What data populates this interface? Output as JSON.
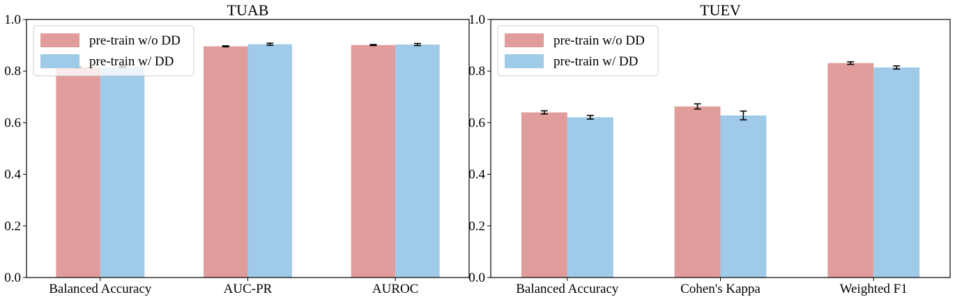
{
  "chart_data": [
    {
      "type": "bar",
      "title": "TUAB",
      "categories": [
        "Balanced Accuracy",
        "AUC-PR",
        "AUROC"
      ],
      "series": [
        {
          "name": "pre-train w/o DD",
          "color": "#e09d9b",
          "values": [
            0.815,
            0.896,
            0.901
          ],
          "errors": [
            0.003,
            0.002,
            0.002
          ]
        },
        {
          "name": "pre-train w/ DD",
          "color": "#9fcae8",
          "values": [
            0.816,
            0.904,
            0.903
          ],
          "errors": [
            0.002,
            0.004,
            0.004
          ]
        }
      ],
      "yticks": [
        "0.0",
        "0.2",
        "0.4",
        "0.6",
        "0.8",
        "1.0"
      ],
      "ylim": [
        0,
        1.0
      ],
      "xlabel": "",
      "ylabel": "",
      "legend": "top-left"
    },
    {
      "type": "bar",
      "title": "TUEV",
      "categories": [
        "Balanced Accuracy",
        "Cohen's Kappa",
        "Weighted F1"
      ],
      "series": [
        {
          "name": "pre-train w/o DD",
          "color": "#e09d9b",
          "values": [
            0.64,
            0.663,
            0.831
          ],
          "errors": [
            0.006,
            0.01,
            0.005
          ]
        },
        {
          "name": "pre-train w/ DD",
          "color": "#9fcae8",
          "values": [
            0.621,
            0.628,
            0.814
          ],
          "errors": [
            0.007,
            0.017,
            0.006
          ]
        }
      ],
      "yticks": [
        "0.0",
        "0.2",
        "0.4",
        "0.6",
        "0.8",
        "1.0"
      ],
      "ylim": [
        0,
        1.0
      ],
      "xlabel": "",
      "ylabel": "",
      "legend": "top-left"
    }
  ]
}
